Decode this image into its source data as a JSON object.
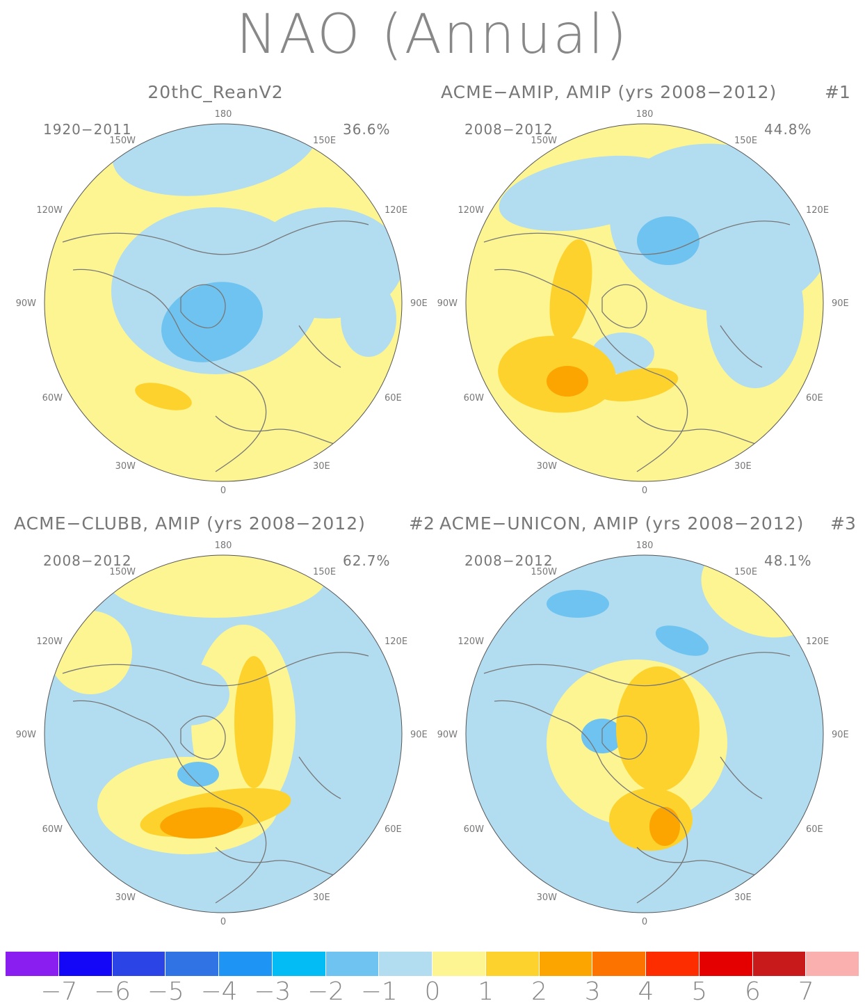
{
  "title": "NAO (Annual)",
  "colors": {
    "land_outline": "#777777",
    "circle_border": "#555555",
    "level_neg4": "#2f7be4",
    "level_neg2": "#6ec3f0",
    "level_neg1": "#b2dcf0",
    "level_0": "#fdf591",
    "level_1": "#fdd22d",
    "level_2": "#fca500"
  },
  "panels": [
    {
      "title": "20thC_ReanV2",
      "number": "",
      "period": "1920-2011",
      "percent": "36.6%",
      "base_level": "level_0"
    },
    {
      "title": "ACME-AMIP, AMIP (yrs 2008-2012)",
      "number": "#1",
      "period": "2008-2012",
      "percent": "44.8%",
      "base_level": "level_0"
    },
    {
      "title": "ACME-CLUBB, AMIP (yrs 2008-2012)",
      "number": "#2",
      "period": "2008-2012",
      "percent": "62.7%",
      "base_level": "level_neg1"
    },
    {
      "title": "ACME-UNICON, AMIP (yrs 2008-2012)",
      "number": "#3",
      "period": "2008-2012",
      "percent": "48.1%",
      "base_level": "level_neg1"
    }
  ],
  "longitude_labels": {
    "top": "180",
    "bottom": "0",
    "upper_left": "150W",
    "upper_right": "150E",
    "left_high": "120W",
    "right_high": "120E",
    "left_mid": "90W",
    "right_mid": "90E",
    "left_low": "60W",
    "right_low": "60E",
    "lower_left": "30W",
    "lower_right": "30E"
  },
  "colorbar": {
    "colors": [
      "#8a1df0",
      "#1406f7",
      "#2a44e6",
      "#2f73e4",
      "#1e95f5",
      "#04bcf5",
      "#6ec3f0",
      "#b2dcf0",
      "#fdf591",
      "#fdd22d",
      "#fca500",
      "#fd7300",
      "#fd2d00",
      "#e40000",
      "#c81a1a",
      "#fbb0b0"
    ],
    "labels": [
      "-7",
      "-6",
      "-5",
      "-4",
      "-3",
      "-2",
      "-1",
      "0",
      "1",
      "2",
      "3",
      "4",
      "5",
      "6",
      "7"
    ]
  }
}
